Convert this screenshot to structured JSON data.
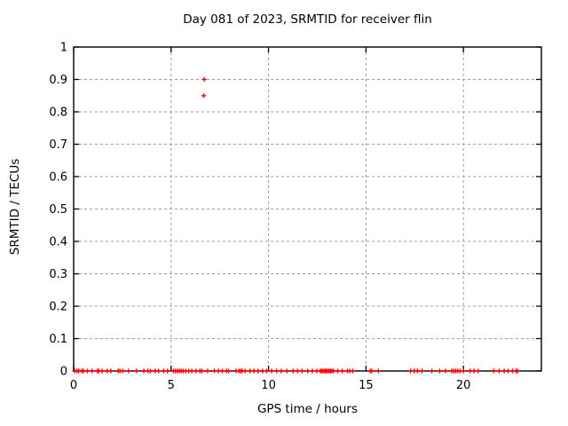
{
  "chart_data": {
    "type": "scatter",
    "title": "Day 081 of 2023, SRMTID for receiver flin",
    "xlabel": "GPS time / hours",
    "ylabel": "SRMTID / TECUs",
    "xlim": [
      0,
      24
    ],
    "ylim": [
      0,
      1
    ],
    "x_ticks": [
      0,
      5,
      10,
      15,
      20
    ],
    "y_ticks": [
      0,
      0.1,
      0.2,
      0.3,
      0.4,
      0.5,
      0.6,
      0.7,
      0.8,
      0.9,
      1
    ],
    "grid": true,
    "legend_position": "none",
    "marker_style": "plus",
    "marker_color": "#ff0000",
    "series": [
      {
        "name": "SRMTID",
        "points": [
          [
            6.7,
            0.9
          ],
          [
            6.67,
            0.85
          ],
          [
            0.05,
            0
          ],
          [
            0.17,
            0
          ],
          [
            0.26,
            0
          ],
          [
            0.41,
            0
          ],
          [
            0.5,
            0
          ],
          [
            0.7,
            0
          ],
          [
            0.95,
            0
          ],
          [
            1.22,
            0
          ],
          [
            1.3,
            0
          ],
          [
            1.46,
            0
          ],
          [
            1.72,
            0
          ],
          [
            1.91,
            0
          ],
          [
            2.29,
            0
          ],
          [
            2.38,
            0
          ],
          [
            2.52,
            0
          ],
          [
            2.82,
            0
          ],
          [
            3.23,
            0
          ],
          [
            3.6,
            0
          ],
          [
            3.81,
            0
          ],
          [
            3.94,
            0
          ],
          [
            4.18,
            0
          ],
          [
            4.36,
            0
          ],
          [
            4.62,
            0
          ],
          [
            4.82,
            0
          ],
          [
            5.12,
            0
          ],
          [
            5.22,
            0
          ],
          [
            5.32,
            0
          ],
          [
            5.42,
            0
          ],
          [
            5.52,
            0
          ],
          [
            5.62,
            0
          ],
          [
            5.75,
            0
          ],
          [
            5.9,
            0
          ],
          [
            6.06,
            0
          ],
          [
            6.27,
            0
          ],
          [
            6.48,
            0
          ],
          [
            6.58,
            0
          ],
          [
            6.87,
            0
          ],
          [
            7.22,
            0
          ],
          [
            7.43,
            0
          ],
          [
            7.63,
            0
          ],
          [
            7.85,
            0
          ],
          [
            7.95,
            0
          ],
          [
            8.33,
            0
          ],
          [
            8.48,
            0
          ],
          [
            8.57,
            0
          ],
          [
            8.65,
            0
          ],
          [
            8.8,
            0
          ],
          [
            9.05,
            0
          ],
          [
            9.26,
            0
          ],
          [
            9.47,
            0
          ],
          [
            9.7,
            0
          ],
          [
            9.9,
            0
          ],
          [
            10.16,
            0
          ],
          [
            10.42,
            0
          ],
          [
            10.65,
            0
          ],
          [
            10.94,
            0
          ],
          [
            11.26,
            0
          ],
          [
            11.49,
            0
          ],
          [
            11.72,
            0
          ],
          [
            12.01,
            0
          ],
          [
            12.25,
            0
          ],
          [
            12.48,
            0
          ],
          [
            12.65,
            0
          ],
          [
            12.73,
            0
          ],
          [
            12.8,
            0
          ],
          [
            12.88,
            0
          ],
          [
            12.95,
            0
          ],
          [
            13.02,
            0
          ],
          [
            13.1,
            0
          ],
          [
            13.18,
            0
          ],
          [
            13.25,
            0
          ],
          [
            13.33,
            0
          ],
          [
            13.55,
            0
          ],
          [
            13.78,
            0
          ],
          [
            14.05,
            0
          ],
          [
            14.17,
            0
          ],
          [
            14.32,
            0
          ],
          [
            15.22,
            0
          ],
          [
            15.3,
            0
          ],
          [
            15.64,
            0
          ],
          [
            17.29,
            0
          ],
          [
            17.48,
            0
          ],
          [
            17.64,
            0
          ],
          [
            17.88,
            0
          ],
          [
            18.38,
            0
          ],
          [
            18.78,
            0
          ],
          [
            19.08,
            0
          ],
          [
            19.4,
            0
          ],
          [
            19.5,
            0
          ],
          [
            19.6,
            0
          ],
          [
            19.7,
            0
          ],
          [
            19.82,
            0
          ],
          [
            20.0,
            0
          ],
          [
            20.34,
            0
          ],
          [
            20.55,
            0
          ],
          [
            20.76,
            0
          ],
          [
            21.56,
            0
          ],
          [
            21.83,
            0
          ],
          [
            22.09,
            0
          ],
          [
            22.29,
            0
          ],
          [
            22.52,
            0
          ],
          [
            22.7,
            0
          ],
          [
            22.78,
            0
          ]
        ]
      }
    ]
  },
  "colors": {
    "background": "#ffffff",
    "axis": "#000000",
    "grid": "#9e9e9e",
    "text": "#000000",
    "marker": "#ff0000"
  }
}
